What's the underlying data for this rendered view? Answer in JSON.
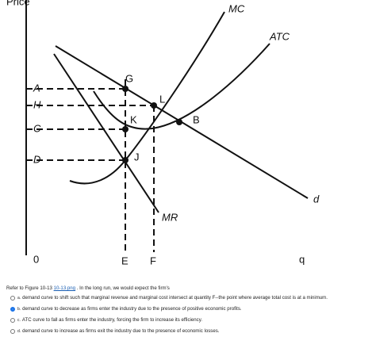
{
  "figure": {
    "axis_labels": {
      "y": "Price",
      "x": "q",
      "origin": "0"
    },
    "price_labels": [
      "A",
      "H",
      "C",
      "D"
    ],
    "quantity_labels": [
      "E",
      "F"
    ],
    "curve_labels": {
      "mc": "MC",
      "atc": "ATC",
      "demand": "d",
      "mr": "MR"
    },
    "point_labels": [
      "G",
      "L",
      "K",
      "B",
      "J"
    ]
  },
  "question": {
    "prefix": "Refer to Figure 10-13",
    "link": "10-13.png",
    "suffix": ". In the long run, we would expect the firm's"
  },
  "options": [
    {
      "letter": "a.",
      "text": "demand curve to shift such that marginal revenue and marginal cost intersect at quantity F--the point where average total cost is at a minimum."
    },
    {
      "letter": "b.",
      "text": "demand curve to decrease as firms enter the industry due to the presence of positive economic profits."
    },
    {
      "letter": "c.",
      "text": "ATC curve to fall as firms enter the industry, forcing the firm to increase its efficiency."
    },
    {
      "letter": "d.",
      "text": "demand curve to increase as firms exit the industry due to the presence of economic losses."
    }
  ]
}
